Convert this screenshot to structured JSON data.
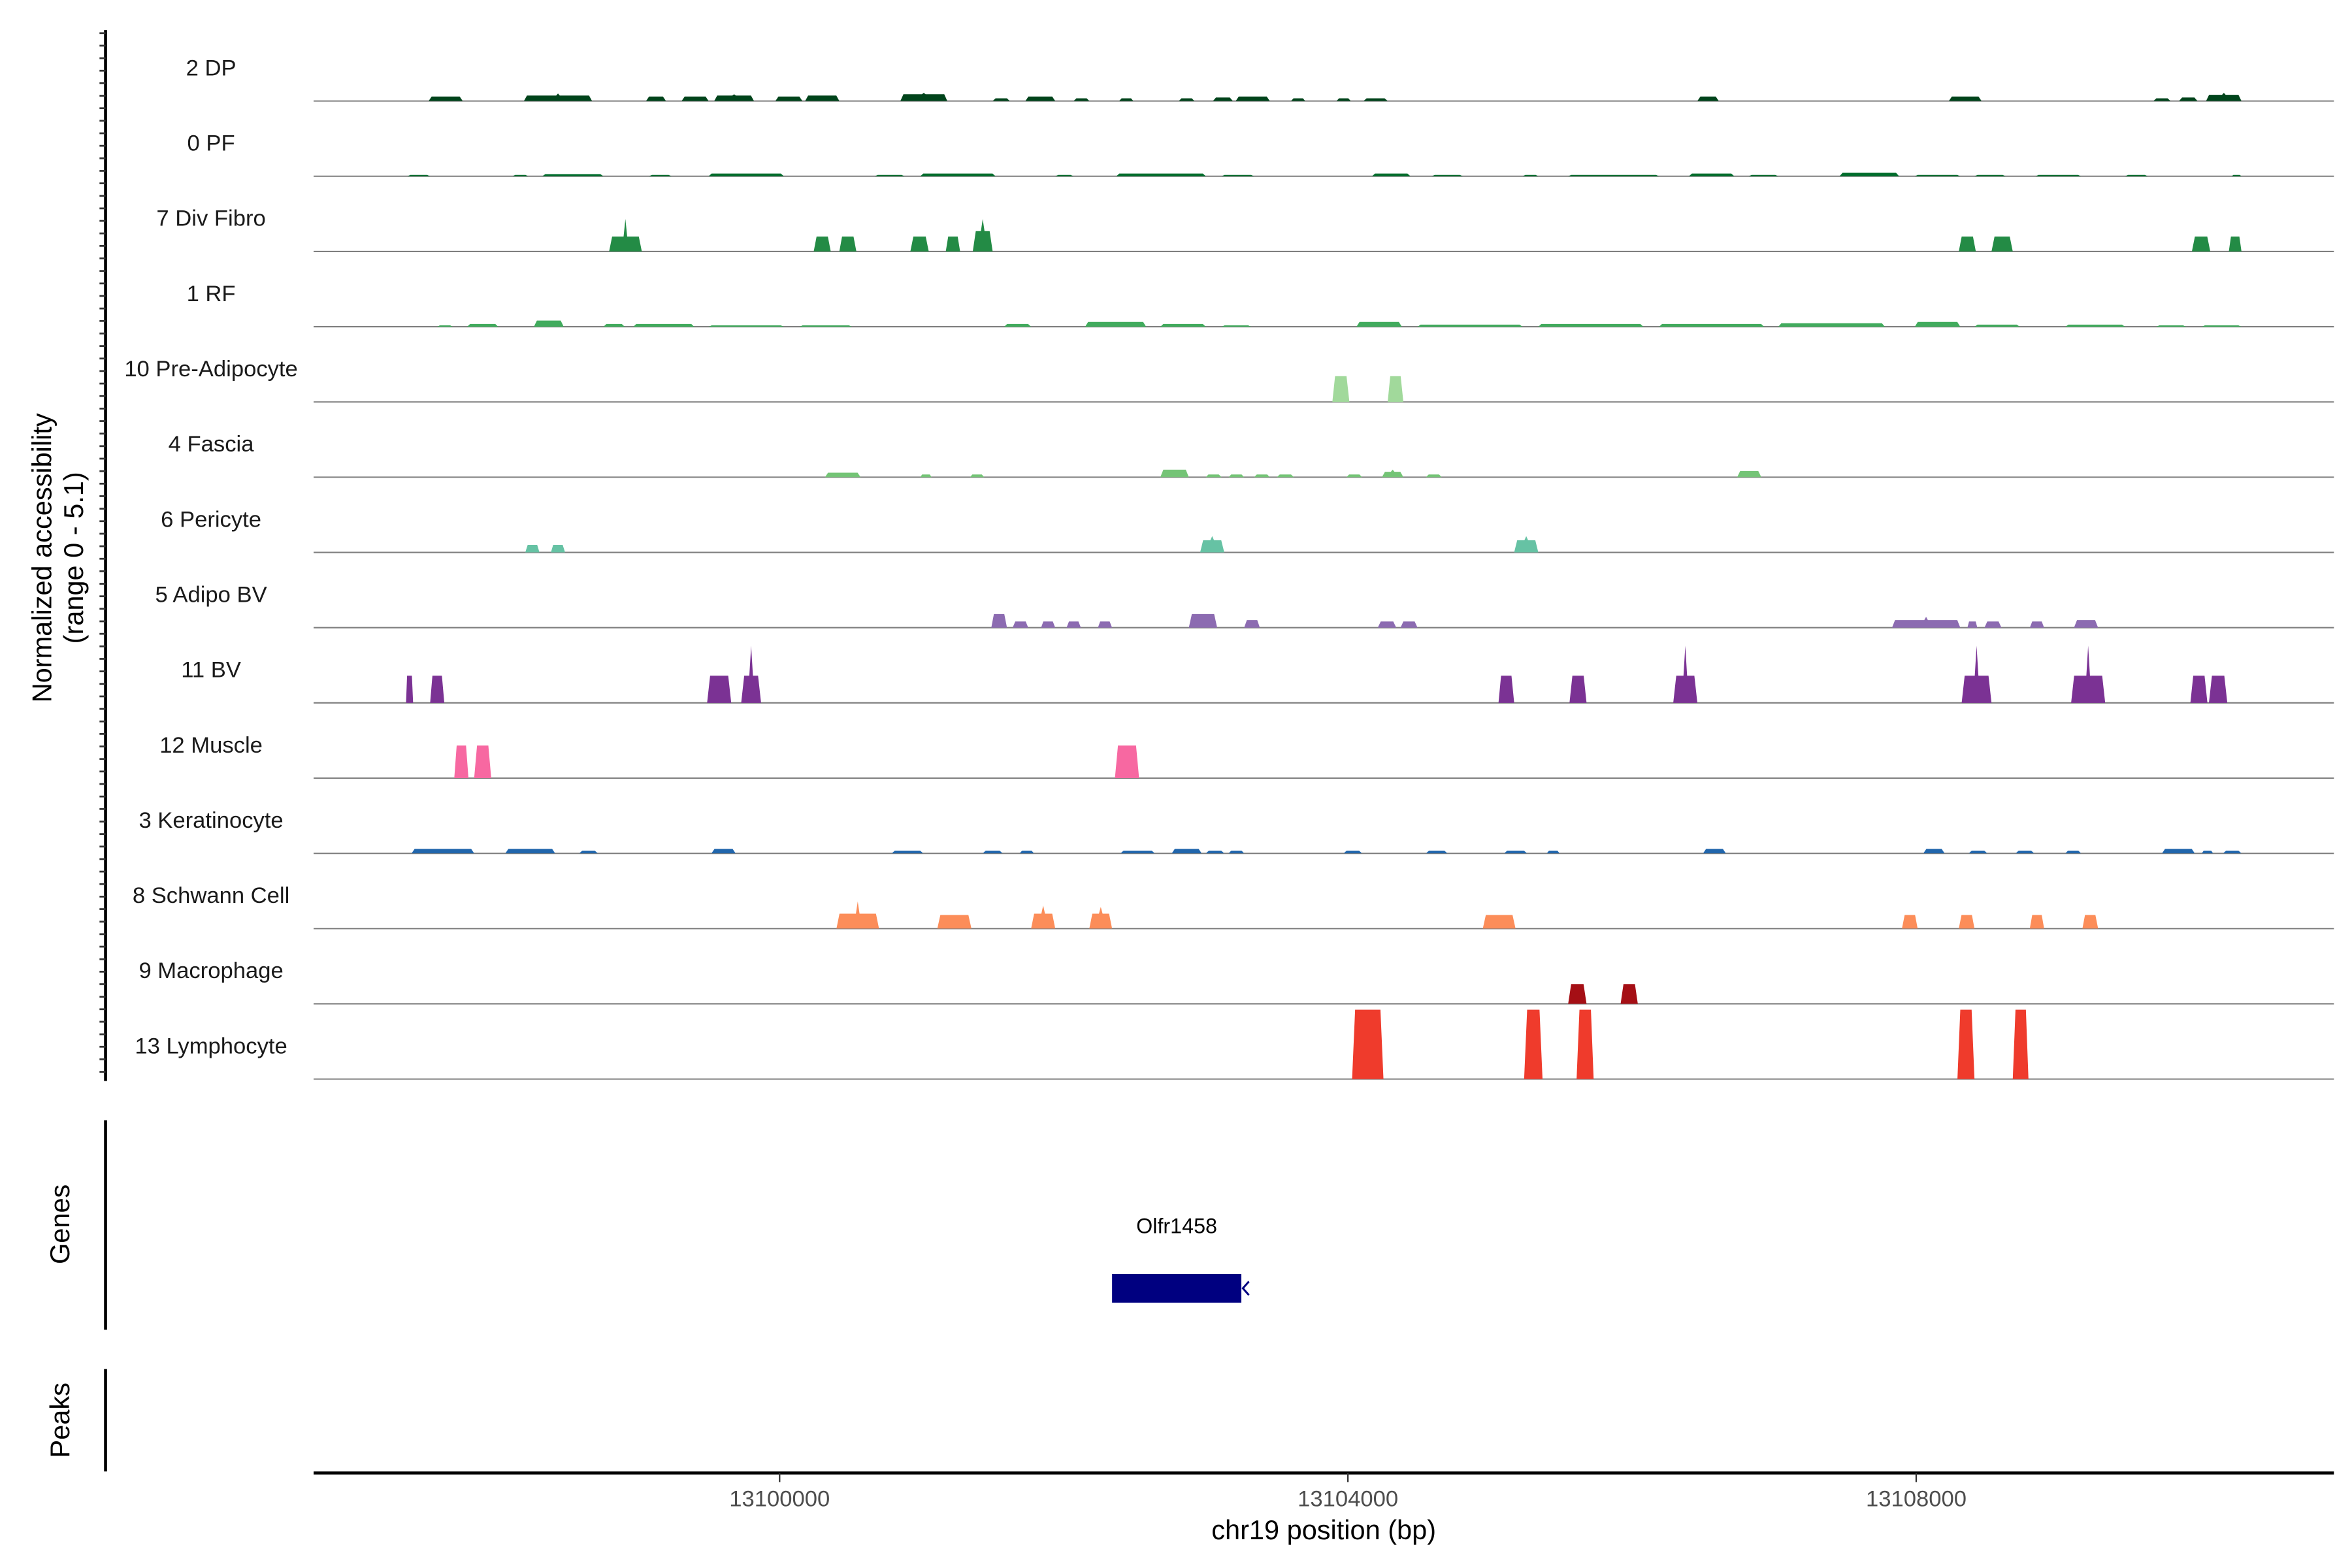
{
  "chart_data": {
    "type": "area",
    "ylabel_line1": "Normalized accessibility",
    "ylabel_line2": "(range 0 - 5.1)",
    "ylim": [
      0,
      5.1
    ],
    "xlabel": "chr19 position (bp)",
    "xlim": [
      13096720,
      13110940
    ],
    "xticks": [
      13100000,
      13104000,
      13108000
    ],
    "xtick_labels": [
      "13100000",
      "13104000",
      "13108000"
    ],
    "panel_labels": {
      "genes": "Genes",
      "peaks": "Peaks"
    },
    "genes": [
      {
        "name": "Olfr1458",
        "start": 13102340,
        "end": 13103250,
        "strand": "-",
        "color": "#000080"
      }
    ],
    "tracks": [
      {
        "name": "2 DP",
        "color": "#00441b",
        "peaks": [
          [
            13097530,
            13097770,
            0.33
          ],
          [
            13098200,
            13098680,
            0.4,
            0.55
          ],
          [
            13099060,
            13099200,
            0.33
          ],
          [
            13099310,
            13099500,
            0.33
          ],
          [
            13099540,
            13099820,
            0.4,
            0.5
          ],
          [
            13099970,
            13100160,
            0.33
          ],
          [
            13100180,
            13100420,
            0.4
          ],
          [
            13100850,
            13101180,
            0.5,
            0.6
          ],
          [
            13101500,
            13101620,
            0.2
          ],
          [
            13101730,
            13101940,
            0.33
          ],
          [
            13102070,
            13102180,
            0.2
          ],
          [
            13102390,
            13102490,
            0.2
          ],
          [
            13102810,
            13102920,
            0.2
          ],
          [
            13103050,
            13103190,
            0.25
          ],
          [
            13103210,
            13103450,
            0.33
          ],
          [
            13103600,
            13103700,
            0.2
          ],
          [
            13103920,
            13104020,
            0.2
          ],
          [
            13104110,
            13104280,
            0.2
          ],
          [
            13106460,
            13106610,
            0.33
          ],
          [
            13108230,
            13108460,
            0.33
          ],
          [
            13109670,
            13109790,
            0.2
          ],
          [
            13109850,
            13109980,
            0.25
          ],
          [
            13110040,
            13110290,
            0.45,
            0.6
          ]
        ]
      },
      {
        "name": "0 PF",
        "color": "#006d2c",
        "peaks": [
          [
            13097380,
            13097540,
            0.1
          ],
          [
            13098120,
            13098230,
            0.1
          ],
          [
            13098330,
            13098760,
            0.15
          ],
          [
            13099080,
            13099240,
            0.1
          ],
          [
            13099500,
            13100030,
            0.2
          ],
          [
            13100670,
            13100880,
            0.1
          ],
          [
            13100990,
            13101520,
            0.2
          ],
          [
            13101940,
            13102070,
            0.1
          ],
          [
            13102370,
            13103000,
            0.2
          ],
          [
            13103110,
            13103340,
            0.1
          ],
          [
            13104170,
            13104440,
            0.2
          ],
          [
            13104590,
            13104810,
            0.1
          ],
          [
            13105230,
            13105340,
            0.1
          ],
          [
            13105550,
            13106190,
            0.1
          ],
          [
            13106400,
            13106720,
            0.2
          ],
          [
            13106820,
            13107030,
            0.1
          ],
          [
            13107460,
            13107880,
            0.25
          ],
          [
            13107990,
            13108310,
            0.1
          ],
          [
            13108410,
            13108630,
            0.1
          ],
          [
            13108840,
            13109160,
            0.1
          ],
          [
            13109470,
            13109630,
            0.1
          ],
          [
            13110220,
            13110290,
            0.1
          ]
        ]
      },
      {
        "name": "7 Div Fibro",
        "color": "#238b45",
        "peaks": [
          [
            13098800,
            13099030,
            1.1,
            2.4
          ],
          [
            13100240,
            13100360,
            1.1
          ],
          [
            13100420,
            13100540,
            1.1
          ],
          [
            13100920,
            13101050,
            1.1
          ],
          [
            13101170,
            13101270,
            1.1
          ],
          [
            13101360,
            13101500,
            1.5,
            2.4
          ],
          [
            13108300,
            13108420,
            1.1
          ],
          [
            13108530,
            13108680,
            1.1
          ],
          [
            13109940,
            13110070,
            1.1
          ],
          [
            13110200,
            13110290,
            1.1
          ]
        ]
      },
      {
        "name": "1 RF",
        "color": "#41ab5d",
        "peaks": [
          [
            13097590,
            13097700,
            0.1
          ],
          [
            13097800,
            13098020,
            0.2
          ],
          [
            13098270,
            13098480,
            0.45
          ],
          [
            13098760,
            13098910,
            0.2
          ],
          [
            13098970,
            13099400,
            0.2
          ],
          [
            13099500,
            13100030,
            0.1
          ],
          [
            13100140,
            13100510,
            0.1
          ],
          [
            13101580,
            13101770,
            0.2
          ],
          [
            13102150,
            13102580,
            0.35
          ],
          [
            13102680,
            13103000,
            0.2
          ],
          [
            13103110,
            13103320,
            0.1
          ],
          [
            13104060,
            13104380,
            0.35
          ],
          [
            13104490,
            13105230,
            0.15
          ],
          [
            13105340,
            13106080,
            0.2
          ],
          [
            13106190,
            13106930,
            0.2
          ],
          [
            13107030,
            13107780,
            0.25
          ],
          [
            13107990,
            13108310,
            0.35
          ],
          [
            13108410,
            13108730,
            0.15
          ],
          [
            13109050,
            13109470,
            0.15
          ],
          [
            13109690,
            13109900,
            0.1
          ],
          [
            13110010,
            13110290,
            0.1
          ]
        ]
      },
      {
        "name": "10 Pre-Adipocyte",
        "color": "#a1d99b",
        "peaks": [
          [
            13103890,
            13104010,
            1.9
          ],
          [
            13104280,
            13104390,
            1.9
          ]
        ]
      },
      {
        "name": "4 Fascia",
        "color": "#74c476",
        "peaks": [
          [
            13100320,
            13100570,
            0.33
          ],
          [
            13100990,
            13101070,
            0.2
          ],
          [
            13101340,
            13101440,
            0.2
          ],
          [
            13102680,
            13102880,
            0.55
          ],
          [
            13103000,
            13103110,
            0.2
          ],
          [
            13103160,
            13103270,
            0.2
          ],
          [
            13103340,
            13103450,
            0.2
          ],
          [
            13103500,
            13103620,
            0.2
          ],
          [
            13103990,
            13104100,
            0.2
          ],
          [
            13104240,
            13104390,
            0.4,
            0.55
          ],
          [
            13104550,
            13104660,
            0.2
          ],
          [
            13106740,
            13106910,
            0.45
          ]
        ]
      },
      {
        "name": "6 Pericyte",
        "color": "#66c2a4",
        "peaks": [
          [
            13098210,
            13098310,
            0.55
          ],
          [
            13098390,
            13098490,
            0.55
          ],
          [
            13102960,
            13103130,
            0.9,
            1.2
          ],
          [
            13105170,
            13105340,
            0.9,
            1.2
          ]
        ]
      },
      {
        "name": "5 Adipo BV",
        "color": "#8c6bb1",
        "peaks": [
          [
            13101490,
            13101600,
            1.0
          ],
          [
            13101640,
            13101750,
            0.45
          ],
          [
            13101840,
            13101940,
            0.45
          ],
          [
            13102020,
            13102120,
            0.45
          ],
          [
            13102240,
            13102340,
            0.45
          ],
          [
            13102880,
            13103080,
            1.0
          ],
          [
            13103270,
            13103380,
            0.55
          ],
          [
            13104210,
            13104340,
            0.45
          ],
          [
            13104370,
            13104490,
            0.45
          ],
          [
            13107830,
            13108310,
            0.55,
            0.8
          ],
          [
            13108360,
            13108430,
            0.45
          ],
          [
            13108480,
            13108600,
            0.45
          ],
          [
            13108800,
            13108900,
            0.45
          ],
          [
            13109110,
            13109280,
            0.55
          ]
        ]
      },
      {
        "name": "11 BV",
        "color": "#7b3294",
        "peaks": [
          [
            13097370,
            13097420,
            2.0
          ],
          [
            13097540,
            13097640,
            2.0
          ],
          [
            13099490,
            13099660,
            2.0
          ],
          [
            13099730,
            13099870,
            2.0,
            4.2
          ],
          [
            13105060,
            13105170,
            2.0
          ],
          [
            13105560,
            13105680,
            2.0
          ],
          [
            13106290,
            13106460,
            2.0,
            4.2
          ],
          [
            13108320,
            13108530,
            2.0,
            4.2
          ],
          [
            13109090,
            13109330,
            2.0,
            4.2
          ],
          [
            13109930,
            13110050,
            2.0
          ],
          [
            13110060,
            13110190,
            2.0
          ]
        ]
      },
      {
        "name": "12 Muscle",
        "color": "#f768a1",
        "peaks": [
          [
            13097710,
            13097810,
            2.4
          ],
          [
            13097850,
            13097970,
            2.4
          ],
          [
            13102360,
            13102530,
            2.4
          ]
        ]
      },
      {
        "name": "3 Keratinocyte",
        "color": "#2166ac",
        "peaks": [
          [
            13097410,
            13097850,
            0.33
          ],
          [
            13098070,
            13098420,
            0.33
          ],
          [
            13098590,
            13098720,
            0.2
          ],
          [
            13099520,
            13099690,
            0.33
          ],
          [
            13100790,
            13101010,
            0.2
          ],
          [
            13101430,
            13101570,
            0.2
          ],
          [
            13101690,
            13101790,
            0.2
          ],
          [
            13102400,
            13102640,
            0.2
          ],
          [
            13102760,
            13102970,
            0.33
          ],
          [
            13103000,
            13103130,
            0.2
          ],
          [
            13103160,
            13103270,
            0.2
          ],
          [
            13103970,
            13104100,
            0.2
          ],
          [
            13104550,
            13104700,
            0.2
          ],
          [
            13105100,
            13105260,
            0.2
          ],
          [
            13105400,
            13105490,
            0.2
          ],
          [
            13106500,
            13106660,
            0.33
          ],
          [
            13108050,
            13108200,
            0.33
          ],
          [
            13108370,
            13108500,
            0.2
          ],
          [
            13108700,
            13108830,
            0.2
          ],
          [
            13109050,
            13109160,
            0.2
          ],
          [
            13109730,
            13109960,
            0.33
          ],
          [
            13110010,
            13110090,
            0.2
          ],
          [
            13110160,
            13110290,
            0.2
          ]
        ]
      },
      {
        "name": "8 Schwann Cell",
        "color": "#fc8d59",
        "peaks": [
          [
            13100400,
            13100700,
            1.1,
            2.0
          ],
          [
            13101110,
            13101350,
            1.0
          ],
          [
            13101770,
            13101940,
            1.1,
            1.7
          ],
          [
            13102180,
            13102340,
            1.1,
            1.6
          ],
          [
            13104950,
            13105180,
            1.0
          ],
          [
            13107900,
            13108010,
            1.0
          ],
          [
            13108300,
            13108410,
            1.0
          ],
          [
            13108800,
            13108900,
            1.0
          ],
          [
            13109170,
            13109280,
            1.0
          ]
        ]
      },
      {
        "name": "9 Macrophage",
        "color": "#a50f15",
        "peaks": [
          [
            13105550,
            13105680,
            1.45
          ],
          [
            13105920,
            13106040,
            1.45
          ]
        ]
      },
      {
        "name": "13 Lymphocyte",
        "color": "#ef3b2c",
        "peaks": [
          [
            13104030,
            13104250,
            5.1
          ],
          [
            13105240,
            13105370,
            5.1
          ],
          [
            13105610,
            13105730,
            5.1
          ],
          [
            13108290,
            13108410,
            5.1
          ],
          [
            13108680,
            13108790,
            5.1
          ]
        ]
      }
    ]
  }
}
